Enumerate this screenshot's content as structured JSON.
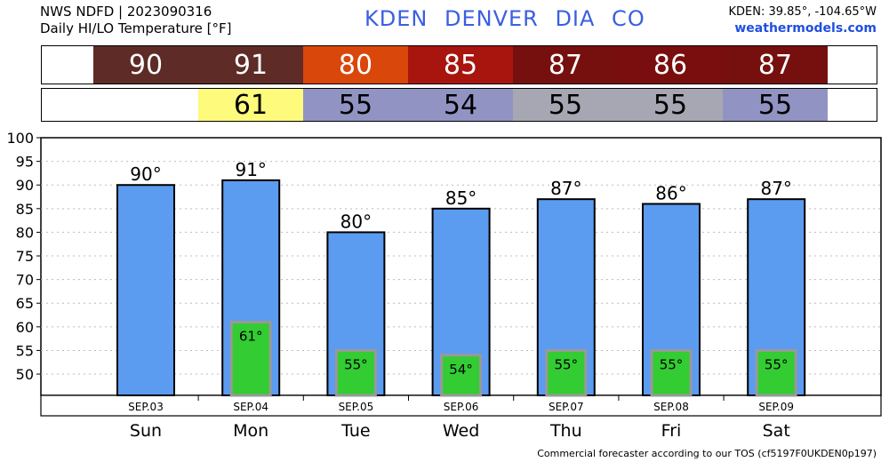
{
  "header": {
    "source": "NWS NDFD | 2023090316",
    "subtitle": "Daily HI/LO Temperature [°F]",
    "station": "KDEN  DENVER DIA    CO",
    "coords": "KDEN: 39.85°, -104.65°W",
    "site": "weathermodels.com"
  },
  "hi_row": [
    {
      "value": "90",
      "color": "#5e2b27"
    },
    {
      "value": "91",
      "color": "#5e2b27"
    },
    {
      "value": "80",
      "color": "#d9470a"
    },
    {
      "value": "85",
      "color": "#a8150e"
    },
    {
      "value": "87",
      "color": "#76100e"
    },
    {
      "value": "86",
      "color": "#7a0e0e"
    },
    {
      "value": "87",
      "color": "#76100e"
    }
  ],
  "lo_row": [
    {
      "value": "",
      "color": "#ffffff"
    },
    {
      "value": "61",
      "color": "#fdfa7c"
    },
    {
      "value": "55",
      "color": "#9194c3"
    },
    {
      "value": "54",
      "color": "#9194c3"
    },
    {
      "value": "55",
      "color": "#a7a7b3"
    },
    {
      "value": "55",
      "color": "#a7a7b3"
    },
    {
      "value": "55",
      "color": "#9194c3"
    }
  ],
  "footer": "Commercial forecaster according to our TOS (cf5197F0UKDEN0p197)",
  "chart_data": {
    "type": "bar",
    "categories": [
      "SEP.03",
      "SEP.04",
      "SEP.05",
      "SEP.06",
      "SEP.07",
      "SEP.08",
      "SEP.09"
    ],
    "day_labels": [
      "Sun",
      "Mon",
      "Tue",
      "Wed",
      "Thu",
      "Fri",
      "Sat"
    ],
    "series": [
      {
        "values": [
          90,
          91,
          80,
          85,
          87,
          86,
          87
        ],
        "labels": [
          "90°",
          "91°",
          "80°",
          "85°",
          "87°",
          "86°",
          "87°"
        ],
        "color": "#5b9bf0"
      },
      {
        "values": [
          null,
          61,
          55,
          54,
          55,
          55,
          55
        ],
        "labels": [
          "",
          "61°",
          "55°",
          "54°",
          "55°",
          "55°",
          "55°"
        ],
        "color": "#33cc33"
      }
    ],
    "ylim": [
      45.5,
      100
    ],
    "yticks": [
      50,
      55,
      60,
      65,
      70,
      75,
      80,
      85,
      90,
      95,
      100
    ],
    "grid": true
  }
}
